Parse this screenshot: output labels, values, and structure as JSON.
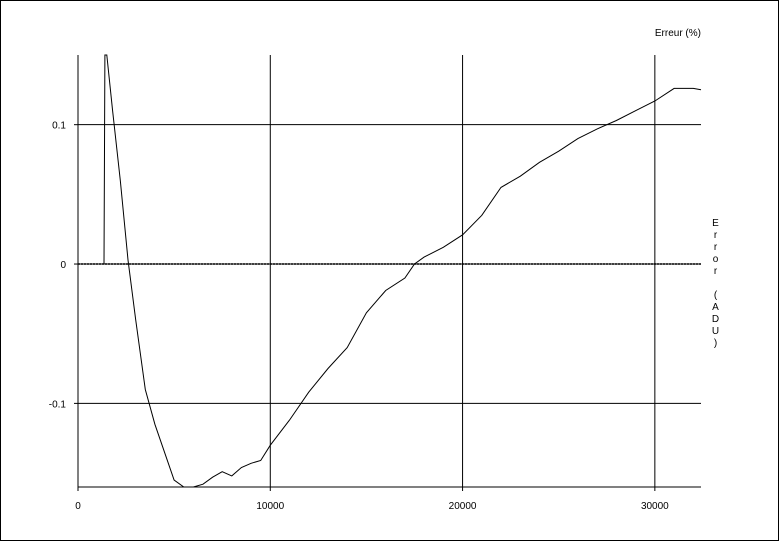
{
  "chart_data": {
    "type": "line",
    "y_label": "Erreur (%)",
    "y2_label": "Error (ADU)",
    "x": [
      0,
      1350,
      1400,
      1500,
      1800,
      2200,
      2600,
      3000,
      3500,
      4000,
      4500,
      5000,
      5500,
      6000,
      6500,
      7000,
      7500,
      8000,
      8500,
      9000,
      9500,
      10000,
      11000,
      12000,
      13000,
      14000,
      15000,
      16000,
      17000,
      17500,
      18000,
      19000,
      20000,
      21000,
      22000,
      23000,
      24000,
      25000,
      26000,
      27000,
      28000,
      29000,
      30000,
      31000,
      32000,
      32400
    ],
    "series": [
      {
        "color": "#000000",
        "values": [
          0,
          0,
          0.15,
          0.15,
          0.11,
          0.06,
          0.003,
          -0.04,
          -0.09,
          -0.115,
          -0.135,
          -0.155,
          -0.16,
          -0.16,
          -0.158,
          -0.153,
          -0.149,
          -0.152,
          -0.146,
          -0.143,
          -0.141,
          -0.13,
          -0.112,
          -0.092,
          -0.075,
          -0.06,
          -0.035,
          -0.019,
          -0.01,
          0,
          0.005,
          0.012,
          0.021,
          0.035,
          0.055,
          0.063,
          0.073,
          0.081,
          0.09,
          0.097,
          0.103,
          0.11,
          0.117,
          0.126,
          0.126,
          0.125
        ]
      },
      {
        "color": "#000000",
        "values": [
          0,
          0,
          0,
          0,
          0,
          0,
          0,
          0,
          0,
          0,
          0,
          0,
          0,
          0,
          0,
          0,
          0,
          0,
          0,
          0,
          0,
          0,
          0,
          0,
          0,
          0,
          0,
          0,
          0,
          0,
          0,
          0,
          0,
          0,
          0,
          0,
          0,
          0,
          0,
          0,
          0,
          0,
          0,
          0,
          0,
          0
        ]
      }
    ],
    "xlim": [
      0,
      32400
    ],
    "xticks": [
      0,
      10000,
      20000,
      30000
    ],
    "ylim": [
      -0.16,
      0.15
    ],
    "yticks": [
      -0.1,
      0,
      0.1
    ],
    "grid": true
  }
}
